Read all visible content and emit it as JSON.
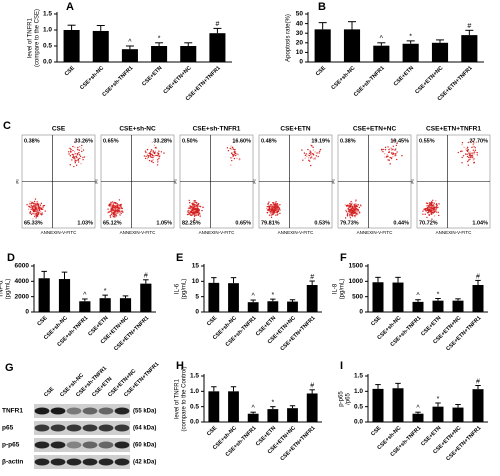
{
  "chart_data": [
    {
      "type": "bar",
      "panel": "A",
      "ylabel": [
        "level of TNFR1",
        "(compare to the CSE)"
      ],
      "categories": [
        "CSE",
        "CSE+sh-NC",
        "CSE+sh-TNFR1",
        "CSE+ETN",
        "CSE+ETN+NC",
        "CSE+ETN+TNFR1"
      ],
      "values": [
        1.0,
        0.97,
        0.4,
        0.5,
        0.5,
        0.9
      ],
      "errors": [
        0.15,
        0.17,
        0.1,
        0.1,
        0.1,
        0.15
      ],
      "markers": [
        null,
        null,
        "^",
        "*",
        null,
        "#"
      ],
      "color": "#000000",
      "ylim": [
        0,
        1.5
      ],
      "yticks": [
        {
          "value": 0,
          "label": "0.0"
        },
        {
          "value": 0.5,
          "label": "0.5"
        },
        {
          "value": 1,
          "label": "1.0"
        },
        {
          "value": 1.5,
          "label": "1.5"
        }
      ]
    },
    {
      "type": "bar",
      "panel": "B",
      "ylabel": [
        "Apoptosis rate(%)"
      ],
      "categories": [
        "CSE",
        "CSE+sh-NC",
        "CSE+sh-TNFR1",
        "CSE+ETN",
        "CSE+ETN+NC",
        "CSE+ETN+TNFR1"
      ],
      "values": [
        34,
        34,
        17,
        19,
        20,
        28
      ],
      "errors": [
        7,
        8,
        3,
        3,
        3,
        5
      ],
      "markers": [
        null,
        null,
        "^",
        "*",
        null,
        "#"
      ],
      "color": "#000000",
      "ylim": [
        0,
        50
      ],
      "yticks": [
        0,
        10,
        20,
        30,
        40,
        50
      ]
    },
    {
      "type": "bar",
      "panel": "D",
      "ylabel": [
        "TNF-α",
        "(pg/mL)"
      ],
      "categories": [
        "CSE",
        "CSE+sh-NC",
        "CSE+sh-TNFR1",
        "CSE+ETN",
        "CSE+ETN+NC",
        "CSE+ETN+TNFR1"
      ],
      "values": [
        4400,
        4300,
        1400,
        1800,
        1800,
        3700
      ],
      "errors": [
        900,
        900,
        300,
        400,
        300,
        500
      ],
      "markers": [
        null,
        null,
        "^",
        "*",
        null,
        "#"
      ],
      "color": "#000000",
      "ylim": [
        0,
        6000
      ],
      "yticks": [
        0,
        2000,
        4000,
        6000
      ]
    },
    {
      "type": "bar",
      "panel": "E",
      "ylabel": [
        "IL-6",
        "(pg/mL)"
      ],
      "categories": [
        "CSE",
        "CSE+sh-NC",
        "CSE+sh-TNFR1",
        "CSE+ETN",
        "CSE+ETN+NC",
        "CSE+ETN+TNFR1"
      ],
      "values": [
        9.5,
        9.4,
        3.2,
        3.5,
        3.4,
        8.8
      ],
      "errors": [
        1.7,
        1.8,
        0.7,
        0.7,
        0.6,
        1.3
      ],
      "markers": [
        null,
        null,
        "^",
        "*",
        null,
        "#"
      ],
      "color": "#000000",
      "ylim": [
        0,
        15
      ],
      "yticks": [
        0,
        5,
        10,
        15
      ]
    },
    {
      "type": "bar",
      "panel": "F",
      "ylabel": [
        "IL-8",
        "(pg/mL)"
      ],
      "categories": [
        "CSE",
        "CSE+sh-NC",
        "CSE+sh-TNFR1",
        "CSE+ETN",
        "CSE+ETN+NC",
        "CSE+ETN+TNFR1"
      ],
      "values": [
        970,
        960,
        330,
        370,
        370,
        880
      ],
      "errors": [
        160,
        170,
        70,
        70,
        60,
        150
      ],
      "markers": [
        null,
        null,
        "^",
        "*",
        null,
        "#"
      ],
      "color": "#000000",
      "ylim": [
        0,
        1500
      ],
      "yticks": [
        0,
        500,
        1000,
        1500
      ]
    },
    {
      "type": "bar",
      "panel": "H",
      "ylabel": [
        "level of TNFR1",
        "(compare to the Control)"
      ],
      "categories": [
        "CSE",
        "CSE+sh-NC",
        "CSE+sh-TNFR1",
        "CSE+ETN",
        "CSE+ETN+NC",
        "CSE+ETN+TNFR1"
      ],
      "values": [
        1.0,
        1.0,
        0.27,
        0.42,
        0.45,
        0.93
      ],
      "errors": [
        0.15,
        0.15,
        0.05,
        0.08,
        0.08,
        0.12
      ],
      "markers": [
        null,
        null,
        "^",
        "*",
        null,
        "#"
      ],
      "color": "#000000",
      "ylim": [
        0,
        1.5
      ],
      "yticks": [
        {
          "value": 0,
          "label": "0.0"
        },
        {
          "value": 0.5,
          "label": "0.5"
        },
        {
          "value": 1,
          "label": "1.0"
        },
        {
          "value": 1.5,
          "label": "1.5"
        }
      ]
    },
    {
      "type": "bar",
      "panel": "I",
      "ylabel": [
        "p-p65",
        "/p65"
      ],
      "categories": [
        "CSE",
        "CSE+sh-NC",
        "CSE+sh-TNFR1",
        "CSE+ETN",
        "CSE+ETN+NC",
        "CSE+ETN+TNFR1"
      ],
      "values": [
        1.08,
        1.1,
        0.27,
        0.5,
        0.47,
        1.07
      ],
      "errors": [
        0.14,
        0.16,
        0.05,
        0.12,
        0.1,
        0.12
      ],
      "markers": [
        null,
        null,
        "^",
        "*",
        null,
        "#"
      ],
      "color": "#000000",
      "ylim": [
        0,
        1.5
      ],
      "yticks": [
        {
          "value": 0,
          "label": "0.0"
        },
        {
          "value": 0.5,
          "label": "0.5"
        },
        {
          "value": 1,
          "label": "1.0"
        },
        {
          "value": 1.5,
          "label": "1.5"
        }
      ]
    }
  ],
  "flow_cytometry": {
    "panel": "C",
    "xlabel": "ANNEXIN-V-FITC",
    "ylabel": "PI",
    "plots": [
      {
        "title": "CSE",
        "ul": "0.38%",
        "ur": "33.26%",
        "ll": "65.33%",
        "lr": "1.03%"
      },
      {
        "title": "CSE+sh-NC",
        "ul": "0.65%",
        "ur": "33.28%",
        "ll": "65.12%",
        "lr": "1.05%"
      },
      {
        "title": "CSE+sh-TNFR1",
        "ul": "0.50%",
        "ur": "16.60%",
        "ll": "82.25%",
        "lr": "0.65%"
      },
      {
        "title": "CSE+ETN",
        "ul": "0.48%",
        "ur": "19.19%",
        "ll": "79.81%",
        "lr": "0.53%"
      },
      {
        "title": "CSE+ETN+NC",
        "ul": "0.38%",
        "ur": "19.45%",
        "ll": "79.73%",
        "lr": "0.44%"
      },
      {
        "title": "CSE+ETN+TNFR1",
        "ul": "0.55%",
        "ur": "27.70%",
        "ll": "70.72%",
        "lr": "1.04%"
      }
    ]
  },
  "western_blot": {
    "panel": "G",
    "lanes": [
      "CSE",
      "CSE+sh-NC",
      "CSE+sh-TNFR1",
      "CSE+ETN",
      "CSE+ETN+NC",
      "CSE+ETN+TNFR1"
    ],
    "rows": [
      {
        "name": "TNFR1",
        "size": "(55 kDa)"
      },
      {
        "name": "p65",
        "size": "(64 kDa)"
      },
      {
        "name": "p-p65",
        "size": "(60 kDa)"
      },
      {
        "name": "β-actin",
        "size": "(42 kDa)"
      }
    ]
  }
}
